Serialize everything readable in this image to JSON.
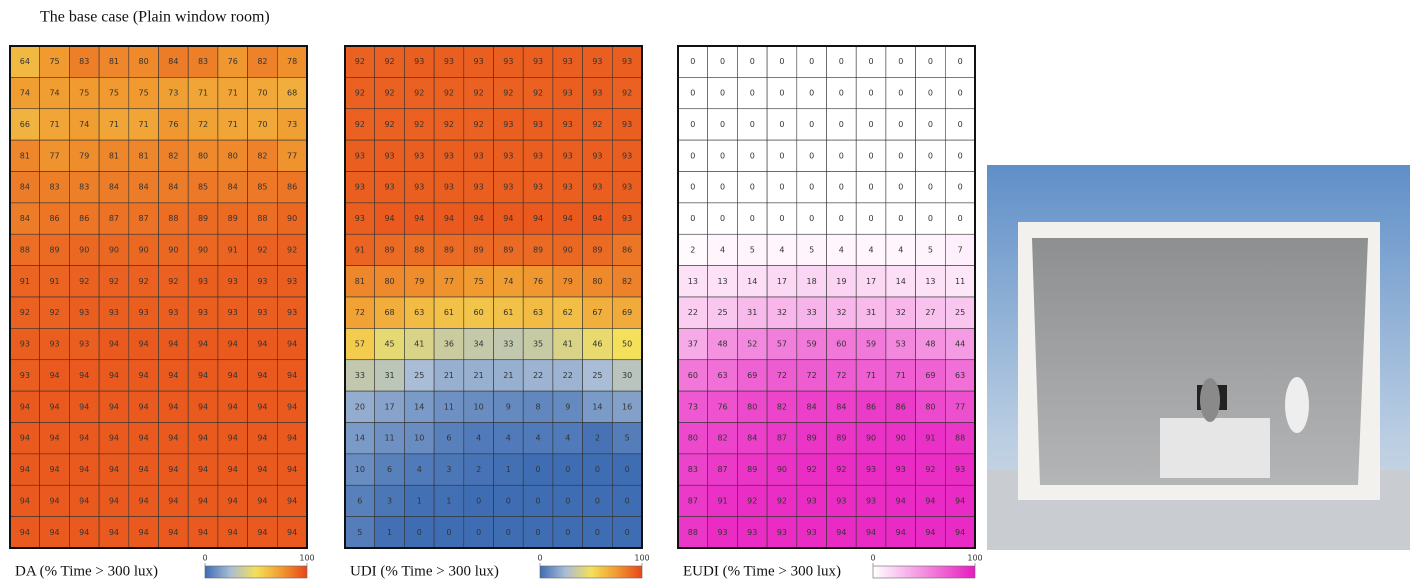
{
  "title": "The base case (Plain window room)",
  "chart_data": [
    {
      "type": "heatmap",
      "xlabel": "DA (% Time > 300 lux)",
      "zlim": [
        0,
        100
      ],
      "zticks": [
        0,
        100
      ],
      "colormap": [
        "#3f6db3",
        "#a9bdd6",
        "#f4e05a",
        "#f09a30",
        "#e8461a"
      ],
      "values": [
        [
          64,
          75,
          83,
          81,
          80,
          84,
          83,
          76,
          82,
          78
        ],
        [
          74,
          74,
          75,
          75,
          75,
          73,
          71,
          71,
          70,
          68
        ],
        [
          66,
          71,
          74,
          71,
          71,
          76,
          72,
          71,
          70,
          73
        ],
        [
          81,
          77,
          79,
          81,
          81,
          82,
          80,
          80,
          82,
          77
        ],
        [
          84,
          83,
          83,
          84,
          84,
          84,
          85,
          84,
          85,
          86
        ],
        [
          84,
          86,
          86,
          87,
          87,
          88,
          89,
          89,
          88,
          90
        ],
        [
          88,
          89,
          90,
          90,
          90,
          90,
          90,
          91,
          92,
          92
        ],
        [
          91,
          91,
          92,
          92,
          92,
          92,
          93,
          93,
          93,
          93
        ],
        [
          92,
          92,
          93,
          93,
          93,
          93,
          93,
          93,
          93,
          93
        ],
        [
          93,
          93,
          93,
          94,
          94,
          94,
          94,
          94,
          94,
          94
        ],
        [
          93,
          94,
          94,
          94,
          94,
          94,
          94,
          94,
          94,
          94
        ],
        [
          94,
          94,
          94,
          94,
          94,
          94,
          94,
          94,
          94,
          94
        ],
        [
          94,
          94,
          94,
          94,
          94,
          94,
          94,
          94,
          94,
          94
        ],
        [
          94,
          94,
          94,
          94,
          94,
          94,
          94,
          94,
          94,
          94
        ],
        [
          94,
          94,
          94,
          94,
          94,
          94,
          94,
          94,
          94,
          94
        ],
        [
          94,
          94,
          94,
          94,
          94,
          94,
          94,
          94,
          94,
          94
        ]
      ]
    },
    {
      "type": "heatmap",
      "xlabel": "UDI (% Time > 300 lux)",
      "zlim": [
        0,
        100
      ],
      "zticks": [
        0,
        100
      ],
      "colormap": [
        "#3f6db3",
        "#a9bdd6",
        "#f4e05a",
        "#f09a30",
        "#e8461a"
      ],
      "values": [
        [
          92,
          92,
          93,
          93,
          93,
          93,
          93,
          93,
          93,
          93
        ],
        [
          92,
          92,
          92,
          92,
          92,
          92,
          92,
          93,
          93,
          92
        ],
        [
          92,
          92,
          92,
          92,
          92,
          93,
          93,
          93,
          92,
          93
        ],
        [
          93,
          93,
          93,
          93,
          93,
          93,
          93,
          93,
          93,
          93
        ],
        [
          93,
          93,
          93,
          93,
          93,
          93,
          93,
          93,
          93,
          93
        ],
        [
          93,
          94,
          94,
          94,
          94,
          94,
          94,
          94,
          94,
          93
        ],
        [
          91,
          89,
          88,
          89,
          89,
          89,
          89,
          90,
          89,
          86
        ],
        [
          81,
          80,
          79,
          77,
          75,
          74,
          76,
          79,
          80,
          82
        ],
        [
          72,
          68,
          63,
          61,
          60,
          61,
          63,
          62,
          67,
          69
        ],
        [
          57,
          45,
          41,
          36,
          34,
          33,
          35,
          41,
          46,
          50
        ],
        [
          33,
          31,
          25,
          21,
          21,
          21,
          22,
          22,
          25,
          30
        ],
        [
          20,
          17,
          14,
          11,
          10,
          9,
          8,
          9,
          14,
          16
        ],
        [
          14,
          11,
          10,
          6,
          4,
          4,
          4,
          4,
          2,
          5
        ],
        [
          10,
          6,
          4,
          3,
          2,
          1,
          0,
          0,
          0,
          0
        ],
        [
          6,
          3,
          1,
          1,
          0,
          0,
          0,
          0,
          0,
          0
        ],
        [
          5,
          1,
          0,
          0,
          0,
          0,
          0,
          0,
          0,
          0
        ]
      ]
    },
    {
      "type": "heatmap",
      "xlabel": "EUDI (% Time > 300 lux)",
      "zlim": [
        0,
        100
      ],
      "zticks": [
        0,
        100
      ],
      "colormap": [
        "#ffffff",
        "#e81cc0"
      ],
      "values": [
        [
          0,
          0,
          0,
          0,
          0,
          0,
          0,
          0,
          0,
          0
        ],
        [
          0,
          0,
          0,
          0,
          0,
          0,
          0,
          0,
          0,
          0
        ],
        [
          0,
          0,
          0,
          0,
          0,
          0,
          0,
          0,
          0,
          0
        ],
        [
          0,
          0,
          0,
          0,
          0,
          0,
          0,
          0,
          0,
          0
        ],
        [
          0,
          0,
          0,
          0,
          0,
          0,
          0,
          0,
          0,
          0
        ],
        [
          0,
          0,
          0,
          0,
          0,
          0,
          0,
          0,
          0,
          0
        ],
        [
          2,
          4,
          5,
          4,
          5,
          4,
          4,
          4,
          5,
          7
        ],
        [
          13,
          13,
          14,
          17,
          18,
          19,
          17,
          14,
          13,
          11
        ],
        [
          22,
          25,
          31,
          32,
          33,
          32,
          31,
          32,
          27,
          25
        ],
        [
          37,
          48,
          52,
          57,
          59,
          60,
          59,
          53,
          48,
          44
        ],
        [
          60,
          63,
          69,
          72,
          72,
          72,
          71,
          71,
          69,
          63
        ],
        [
          73,
          76,
          80,
          82,
          84,
          84,
          86,
          86,
          80,
          77
        ],
        [
          80,
          82,
          84,
          87,
          89,
          89,
          90,
          90,
          91,
          88
        ],
        [
          83,
          87,
          89,
          90,
          92,
          92,
          93,
          93,
          92,
          93
        ],
        [
          87,
          91,
          92,
          92,
          93,
          93,
          93,
          94,
          94,
          94
        ],
        [
          88,
          93,
          93,
          93,
          93,
          94,
          94,
          94,
          94,
          94
        ]
      ]
    }
  ]
}
